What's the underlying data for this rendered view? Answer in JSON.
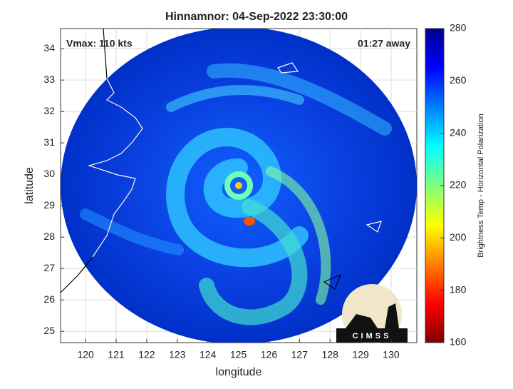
{
  "chart_data": {
    "type": "image",
    "title": "Hinnamnor: 04-Sep-2022 23:30:00",
    "x_label": "longitude",
    "y_label": "latitude",
    "annotations": [
      "Vmax: 110 kts",
      "01:27 away"
    ],
    "logo_text": "CIMSS",
    "xlim": [
      119.18,
      130.84
    ],
    "xticks": [
      120,
      121,
      122,
      123,
      124,
      125,
      126,
      127,
      128,
      129,
      130
    ],
    "ylim": [
      24.64,
      34.64
    ],
    "yticks": [
      25,
      26,
      27,
      28,
      29,
      30,
      31,
      32,
      33,
      34
    ],
    "grid": true,
    "colormap": "jet",
    "colorbar_label": "Brightness Temp - Horizontal Polarization",
    "clim": [
      160,
      280
    ],
    "cticks": [
      160,
      180,
      200,
      220,
      240,
      260,
      280
    ]
  }
}
